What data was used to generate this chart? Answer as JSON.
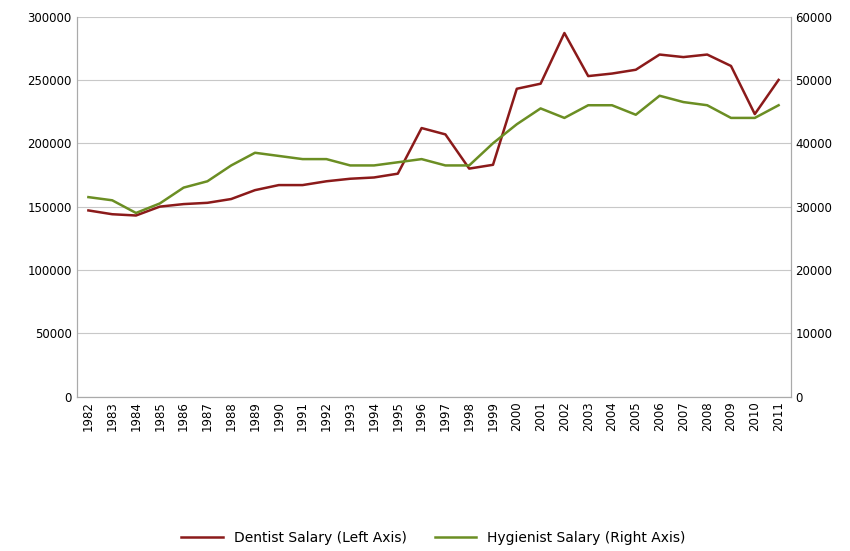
{
  "years": [
    1982,
    1983,
    1984,
    1985,
    1986,
    1987,
    1988,
    1989,
    1990,
    1991,
    1992,
    1993,
    1994,
    1995,
    1996,
    1997,
    1998,
    1999,
    2000,
    2001,
    2002,
    2003,
    2004,
    2005,
    2006,
    2007,
    2008,
    2009,
    2010,
    2011
  ],
  "dentist_salary": [
    147000,
    144000,
    143000,
    150000,
    152000,
    153000,
    156000,
    163000,
    167000,
    167000,
    170000,
    172000,
    173000,
    176000,
    212000,
    207000,
    180000,
    183000,
    243000,
    247000,
    287000,
    253000,
    255000,
    258000,
    270000,
    268000,
    270000,
    261000,
    223000,
    250000
  ],
  "hygienist_salary": [
    31500,
    31000,
    29000,
    30500,
    33000,
    34000,
    36500,
    38500,
    38000,
    37500,
    37500,
    36500,
    36500,
    37000,
    37500,
    36500,
    36500,
    40000,
    43000,
    45500,
    44000,
    46000,
    46000,
    44500,
    47500,
    46500,
    46000,
    44000,
    44000,
    46000
  ],
  "dentist_color": "#8B1A1A",
  "hygienist_color": "#6B8E23",
  "dentist_label": "Dentist Salary (Left Axis)",
  "hygienist_label": "Hygienist Salary (Right Axis)",
  "left_ylim": [
    0,
    300000
  ],
  "right_ylim": [
    0,
    60000
  ],
  "left_yticks": [
    0,
    50000,
    100000,
    150000,
    200000,
    250000,
    300000
  ],
  "right_yticks": [
    0,
    10000,
    20000,
    30000,
    40000,
    50000,
    60000
  ],
  "background_color": "#FFFFFF",
  "grid_color": "#C8C8C8",
  "line_width": 1.8,
  "legend_fontsize": 10,
  "tick_fontsize": 8.5,
  "axis_label_fontsize": 9
}
